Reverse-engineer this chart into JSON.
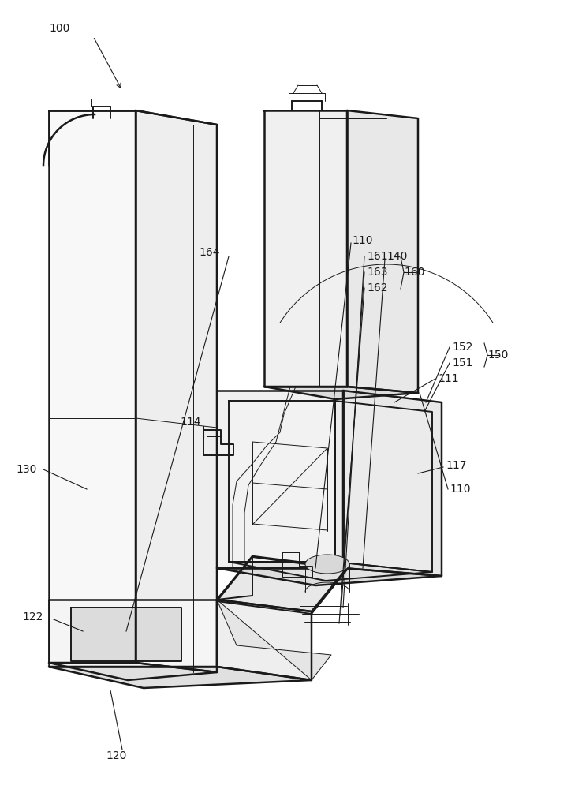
{
  "bg_color": "#ffffff",
  "line_color": "#1a1a1a",
  "lw": 1.4,
  "lw_thin": 0.7,
  "lw_thick": 1.8,
  "fs": 10
}
